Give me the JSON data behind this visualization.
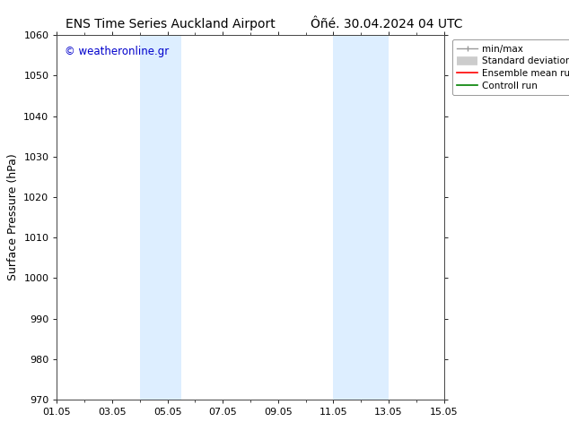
{
  "title_left": "ENS Time Series Auckland Airport",
  "title_right": "Ôñé. 30.04.2024 04 UTC",
  "ylabel": "Surface Pressure (hPa)",
  "ylim": [
    970,
    1060
  ],
  "yticks": [
    970,
    980,
    990,
    1000,
    1010,
    1020,
    1030,
    1040,
    1050,
    1060
  ],
  "xlim_start": 0,
  "xlim_end": 14,
  "xtick_labels": [
    "01.05",
    "03.05",
    "05.05",
    "07.05",
    "09.05",
    "11.05",
    "13.05",
    "15.05"
  ],
  "xtick_positions": [
    0,
    2,
    4,
    6,
    8,
    10,
    12,
    14
  ],
  "shaded_regions": [
    {
      "x_start": 3.0,
      "x_end": 4.5,
      "color": "#ddeeff"
    },
    {
      "x_start": 10.0,
      "x_end": 12.0,
      "color": "#ddeeff"
    }
  ],
  "watermark": "© weatheronline.gr",
  "watermark_color": "#0000cc",
  "background_color": "#ffffff",
  "legend_items": [
    {
      "label": "min/max",
      "color": "#aaaaaa",
      "lw": 1.2
    },
    {
      "label": "Standard deviation",
      "color": "#aaaaaa",
      "lw": 6
    },
    {
      "label": "Ensemble mean run",
      "color": "#ff0000",
      "lw": 1.2
    },
    {
      "label": "Controll run",
      "color": "#008000",
      "lw": 1.2
    }
  ],
  "title_fontsize": 10,
  "tick_fontsize": 8,
  "ylabel_fontsize": 9,
  "legend_fontsize": 7.5
}
